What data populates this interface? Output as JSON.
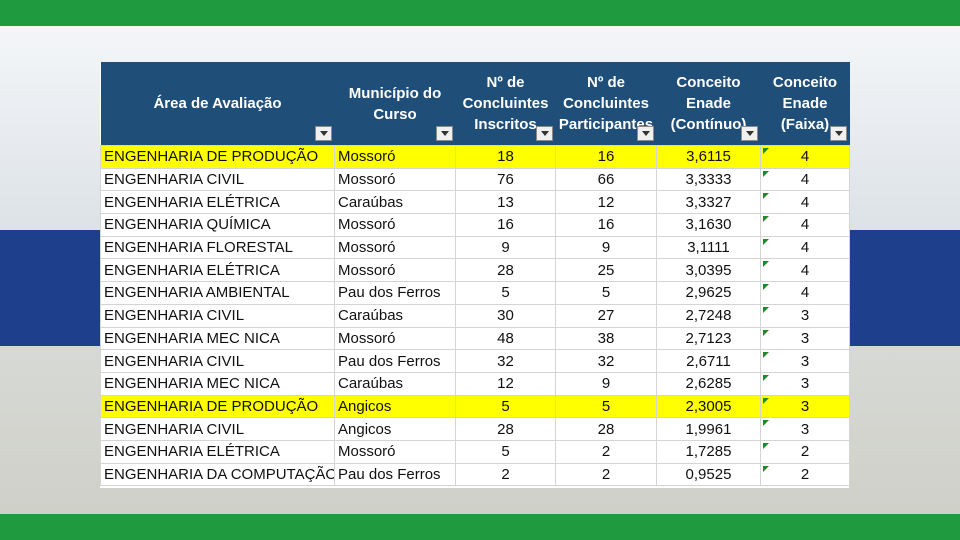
{
  "table": {
    "headers": [
      "Área de Avaliação",
      "Município do Curso",
      "Nº de Concluintes Inscritos",
      "Nº de Concluintes Participantes",
      "Conceito Enade (Contínuo)",
      "Conceito Enade (Faixa)"
    ],
    "rows": [
      {
        "area": "ENGENHARIA DE PRODUÇÃO",
        "municipio": "Mossoró",
        "inscritos": "18",
        "participantes": "16",
        "continuo": "3,6115",
        "faixa": "4",
        "highlight": true
      },
      {
        "area": "ENGENHARIA CIVIL",
        "municipio": "Mossoró",
        "inscritos": "76",
        "participantes": "66",
        "continuo": "3,3333",
        "faixa": "4",
        "highlight": false
      },
      {
        "area": "ENGENHARIA ELÉTRICA",
        "municipio": "Caraúbas",
        "inscritos": "13",
        "participantes": "12",
        "continuo": "3,3327",
        "faixa": "4",
        "highlight": false
      },
      {
        "area": "ENGENHARIA QUÍMICA",
        "municipio": "Mossoró",
        "inscritos": "16",
        "participantes": "16",
        "continuo": "3,1630",
        "faixa": "4",
        "highlight": false
      },
      {
        "area": "ENGENHARIA FLORESTAL",
        "municipio": "Mossoró",
        "inscritos": "9",
        "participantes": "9",
        "continuo": "3,1111",
        "faixa": "4",
        "highlight": false
      },
      {
        "area": "ENGENHARIA ELÉTRICA",
        "municipio": "Mossoró",
        "inscritos": "28",
        "participantes": "25",
        "continuo": "3,0395",
        "faixa": "4",
        "highlight": false
      },
      {
        "area": "ENGENHARIA AMBIENTAL",
        "municipio": "Pau dos Ferros",
        "inscritos": "5",
        "participantes": "5",
        "continuo": "2,9625",
        "faixa": "4",
        "highlight": false
      },
      {
        "area": "ENGENHARIA CIVIL",
        "municipio": "Caraúbas",
        "inscritos": "30",
        "participantes": "27",
        "continuo": "2,7248",
        "faixa": "3",
        "highlight": false
      },
      {
        "area": "ENGENHARIA MEC NICA",
        "municipio": "Mossoró",
        "inscritos": "48",
        "participantes": "38",
        "continuo": "2,7123",
        "faixa": "3",
        "highlight": false
      },
      {
        "area": "ENGENHARIA CIVIL",
        "municipio": "Pau dos Ferros",
        "inscritos": "32",
        "participantes": "32",
        "continuo": "2,6711",
        "faixa": "3",
        "highlight": false
      },
      {
        "area": "ENGENHARIA MEC NICA",
        "municipio": "Caraúbas",
        "inscritos": "12",
        "participantes": "9",
        "continuo": "2,6285",
        "faixa": "3",
        "highlight": false
      },
      {
        "area": "ENGENHARIA DE PRODUÇÃO",
        "municipio": "Angicos",
        "inscritos": "5",
        "participantes": "5",
        "continuo": "2,3005",
        "faixa": "3",
        "highlight": true
      },
      {
        "area": "ENGENHARIA CIVIL",
        "municipio": "Angicos",
        "inscritos": "28",
        "participantes": "28",
        "continuo": "1,9961",
        "faixa": "3",
        "highlight": false
      },
      {
        "area": "ENGENHARIA ELÉTRICA",
        "municipio": "Mossoró",
        "inscritos": "5",
        "participantes": "2",
        "continuo": "1,7285",
        "faixa": "2",
        "highlight": false
      },
      {
        "area": "ENGENHARIA DA COMPUTAÇÃO",
        "municipio": "Pau dos Ferros",
        "inscritos": "2",
        "participantes": "2",
        "continuo": "0,9525",
        "faixa": "2",
        "highlight": false
      }
    ]
  },
  "colors": {
    "header_bg": "#1f4e79",
    "highlight": "#ffff00",
    "brand_green": "#1f9a3f",
    "brand_blue": "#1e3f8c"
  }
}
